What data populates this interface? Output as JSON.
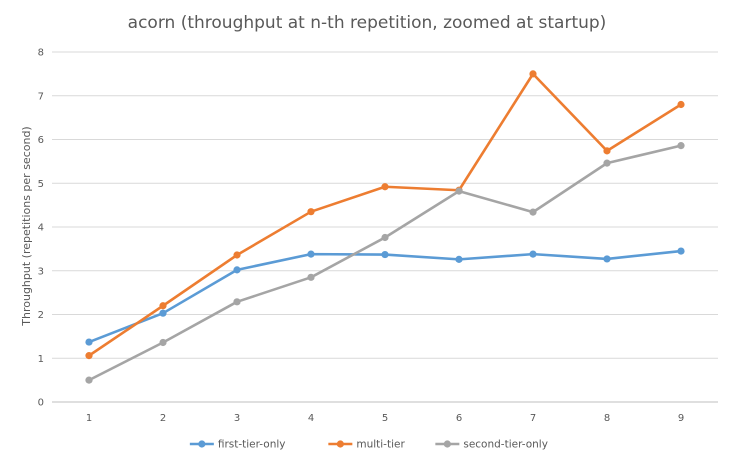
{
  "chart_data": {
    "type": "line",
    "title": "acorn (throughput at n-th repetition, zoomed at startup)",
    "xlabel": "",
    "ylabel": "Throughput (repetitions per second)",
    "categories": [
      "1",
      "2",
      "3",
      "4",
      "5",
      "6",
      "7",
      "8",
      "9"
    ],
    "ylim": [
      0,
      8
    ],
    "yticks": [
      "0",
      "1",
      "2",
      "3",
      "4",
      "5",
      "6",
      "7",
      "8"
    ],
    "grid": true,
    "legend_position": "bottom",
    "series": [
      {
        "name": "first-tier-only",
        "color": "#5b9bd5",
        "values": [
          1.37,
          2.03,
          3.02,
          3.38,
          3.37,
          3.26,
          3.38,
          3.27,
          3.45
        ]
      },
      {
        "name": "multi-tier",
        "color": "#ed7d31",
        "values": [
          1.06,
          2.2,
          3.36,
          4.35,
          4.92,
          4.84,
          7.5,
          5.74,
          6.8
        ]
      },
      {
        "name": "second-tier-only",
        "color": "#a5a5a5",
        "values": [
          0.5,
          1.36,
          2.29,
          2.85,
          3.76,
          4.82,
          4.34,
          5.46,
          5.86
        ]
      }
    ]
  }
}
